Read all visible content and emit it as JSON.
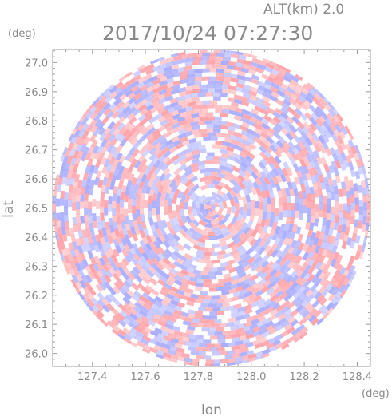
{
  "header": {
    "alt_label": "ALT(km)  2.0",
    "timestamp": "2017/10/24 07:27:30"
  },
  "chart_data": {
    "type": "heatmap",
    "title": "2017/10/24 07:27:30",
    "subtitle": "ALT(km)  2.0",
    "xlabel": "lon",
    "ylabel": "lat",
    "x_unit": "(deg)",
    "y_unit": "(deg)",
    "xlim": [
      127.25,
      128.45
    ],
    "ylim": [
      25.955,
      27.045
    ],
    "x_ticks": [
      127.4,
      127.6,
      127.8,
      128.0,
      128.2,
      128.4
    ],
    "x_tick_labels": [
      "127.4",
      "127.6",
      "127.8",
      "128.0",
      "128.2",
      "128.4"
    ],
    "y_ticks": [
      26.0,
      26.1,
      26.2,
      26.3,
      26.4,
      26.5,
      26.6,
      26.7,
      26.8,
      26.9,
      27.0
    ],
    "y_tick_labels": [
      "26.0",
      "26.1",
      "26.2",
      "26.3",
      "26.4",
      "26.5",
      "26.6",
      "26.7",
      "26.8",
      "26.9",
      "27.0"
    ],
    "center": {
      "lon": 127.85,
      "lat": 26.5
    },
    "range_radius_deg_lat": 0.545,
    "pattern": "concentric range-gated cells, alternating positive/negative values",
    "colormap": {
      "positive": "#ff9aa0",
      "negative": "#a0a4ff",
      "zero": "#ffffff"
    },
    "grid": false
  }
}
